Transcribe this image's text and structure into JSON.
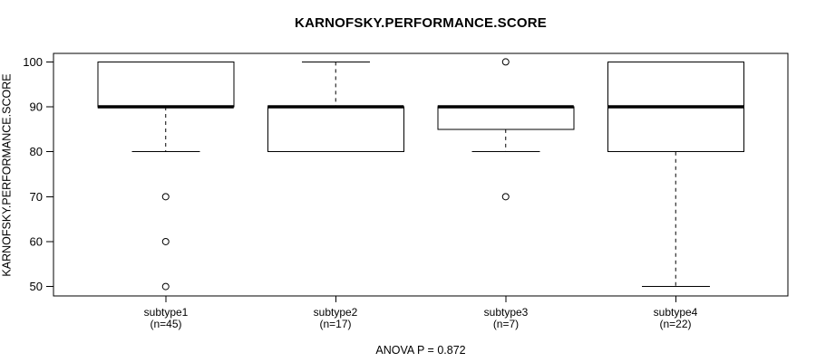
{
  "chart_data": {
    "type": "boxplot",
    "title": "KARNOFSKY.PERFORMANCE.SCORE",
    "ylabel": "KARNOFSKY.PERFORMANCE.SCORE",
    "xlabel": "",
    "ylim": [
      48,
      102
    ],
    "y_ticks": [
      50,
      60,
      70,
      80,
      90,
      100
    ],
    "grid": false,
    "annotation": "ANOVA P = 0.872",
    "colors": {
      "stroke": "#000000",
      "background": "#ffffff"
    },
    "groups": [
      {
        "label": "subtype1",
        "n_label": "(n=45)",
        "n": 45,
        "q1": 90,
        "median": 90,
        "q3": 100,
        "whisker_low": 80,
        "whisker_high": 100,
        "outliers": [
          70,
          60,
          50
        ]
      },
      {
        "label": "subtype2",
        "n_label": "(n=17)",
        "n": 17,
        "q1": 80,
        "median": 90,
        "q3": 90,
        "whisker_low": 80,
        "whisker_high": 100,
        "outliers": []
      },
      {
        "label": "subtype3",
        "n_label": "(n=7)",
        "n": 7,
        "q1": 85,
        "median": 90,
        "q3": 90,
        "whisker_low": 80,
        "whisker_high": 90,
        "outliers": [
          100,
          70
        ]
      },
      {
        "label": "subtype4",
        "n_label": "(n=22)",
        "n": 22,
        "q1": 80,
        "median": 90,
        "q3": 100,
        "whisker_low": 50,
        "whisker_high": 100,
        "outliers": []
      }
    ]
  },
  "footer": {
    "anova_label": "ANOVA P = 0.872"
  }
}
